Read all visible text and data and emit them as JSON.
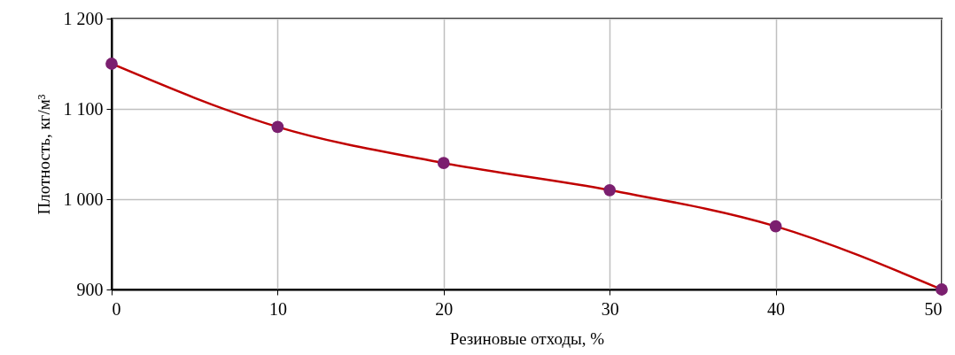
{
  "chart_data": {
    "type": "line",
    "xlabel": "Резиновые отходы, %",
    "ylabel": "Плотность, кг/м³",
    "x": [
      0,
      10,
      20,
      30,
      40,
      50
    ],
    "series": [
      {
        "color": "#c00000",
        "colors": [
          "#7b1f6f",
          "#7b1f6f",
          "#7b1f6f",
          "#7b1f6f",
          "#7b1f6f",
          "#7b1f6f"
        ],
        "values": [
          1150,
          1080,
          1040,
          1010,
          970,
          900
        ]
      }
    ],
    "xlim": [
      0,
      50
    ],
    "xticks": [
      0,
      10,
      20,
      30,
      40,
      50
    ],
    "ylim": [
      900,
      1200
    ],
    "yticks": [
      900,
      {
        "value": 1000,
        "label": "1 000"
      },
      {
        "value": 1100,
        "label": "1 100"
      },
      {
        "value": 1200,
        "label": "1 200"
      }
    ],
    "grid": true,
    "marker": "circle",
    "line_style": "solid"
  }
}
